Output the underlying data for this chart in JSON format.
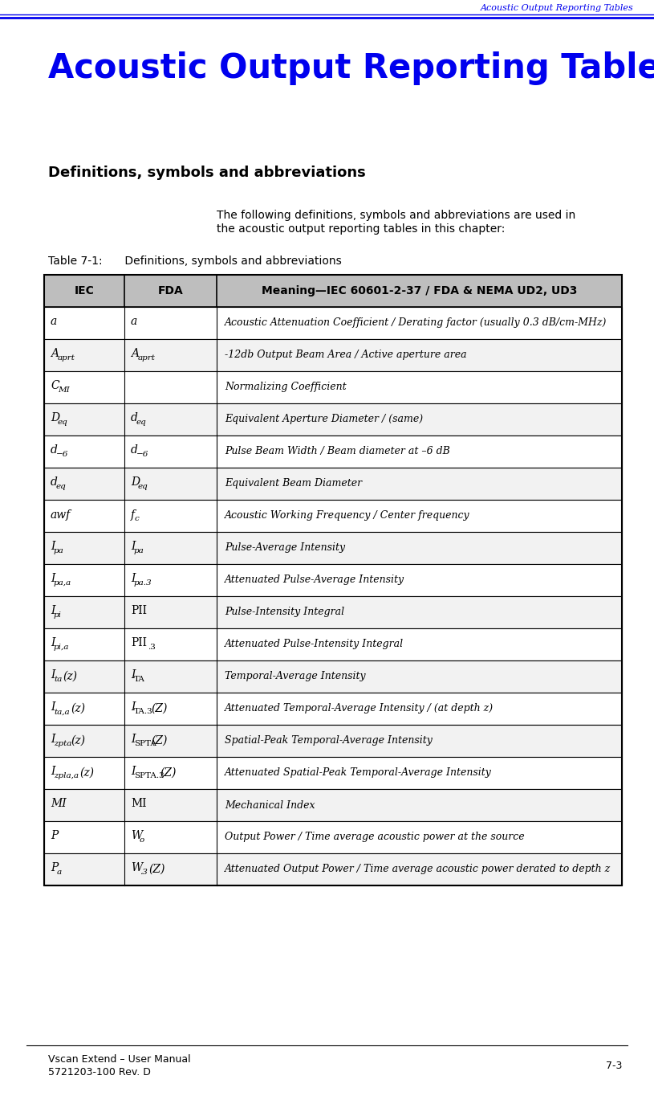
{
  "header_italic_title": "Acoustic Output Reporting Tables",
  "main_title": "Acoustic Output Reporting Tables",
  "section_title": "Definitions, symbols and abbreviations",
  "description_line1": "The following definitions, symbols and abbreviations are used in",
  "description_line2": "the acoustic output reporting tables in this chapter:",
  "table_caption": "Table 7-1:  Definitions, symbols and abbreviations",
  "footer_left1": "Vscan Extend – User Manual",
  "footer_left2": "5721203-100 Rev. D",
  "footer_right": "7-3",
  "col_headers": [
    "IEC",
    "FDA",
    "Meaning—IEC 60601-2-37 / FDA & NEMA UD2, UD3"
  ],
  "meanings": [
    "Acoustic Attenuation Coefficient / Derating factor (usually 0.3 dB/cm-MHz)",
    "-12db Output Beam Area / Active aperture area",
    "Normalizing Coefficient",
    "Equivalent Aperture Diameter / (same)",
    "Pulse Beam Width / Beam diameter at –6 dB",
    "Equivalent Beam Diameter",
    "Acoustic Working Frequency / Center frequency",
    "Pulse-Average Intensity",
    "Attenuated Pulse-Average Intensity",
    "Pulse-Intensity Integral",
    "Attenuated Pulse-Intensity Integral",
    "Temporal-Average Intensity",
    "Attenuated Temporal-Average Intensity / (at depth z)",
    "Spatial-Peak Temporal-Average Intensity",
    "Attenuated Spatial-Peak Temporal-Average Intensity",
    "Mechanical Index",
    "Output Power / Time average acoustic power at the source",
    "Attenuated Output Power / Time average acoustic power derated to depth z"
  ],
  "blue": "#0000EE",
  "black": "#000000",
  "header_bg": "#BEBEBE",
  "white": "#FFFFFF",
  "light_gray": "#F2F2F2"
}
